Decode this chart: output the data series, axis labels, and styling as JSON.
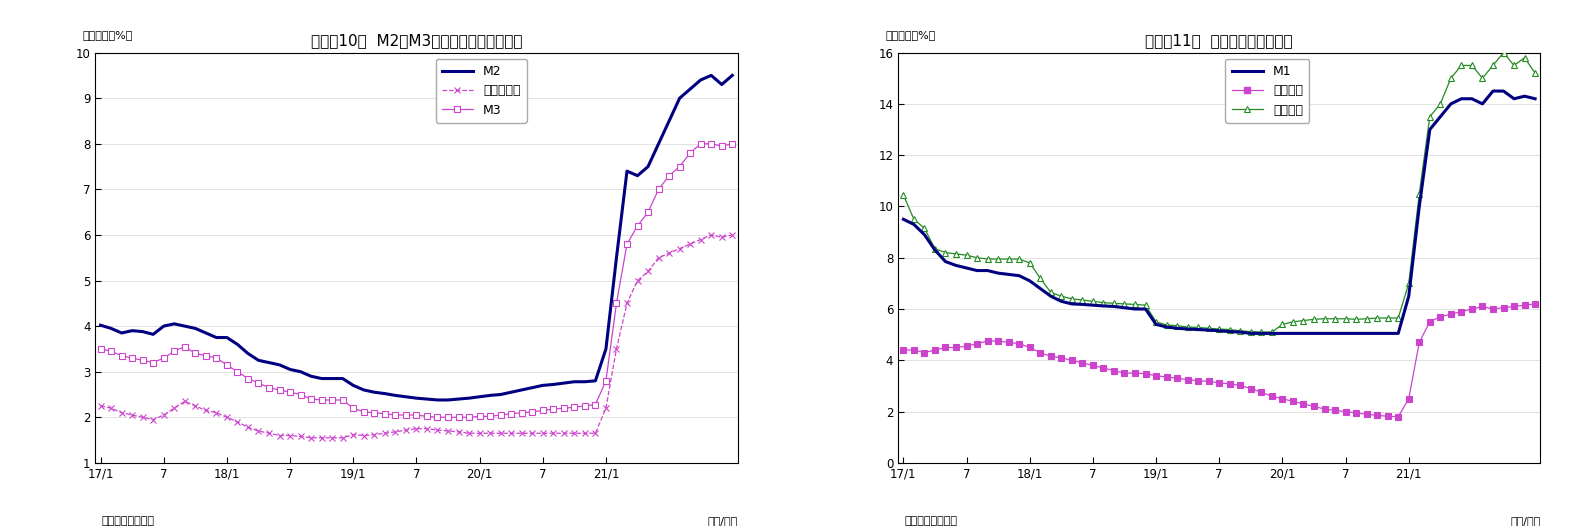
{
  "chart1": {
    "title": "（図表10）  M2、M3、広義流動性の伸び率",
    "ylabel": "（前年比、%）",
    "xlabel_right": "（年/月）",
    "source": "（資料）日本銀行",
    "ylim": [
      1,
      10
    ],
    "yticks": [
      1,
      2,
      3,
      4,
      5,
      6,
      7,
      8,
      9,
      10
    ],
    "xtick_labels": [
      "17/1",
      "7",
      "18/1",
      "7",
      "19/1",
      "7",
      "20/1",
      "7",
      "21/1"
    ],
    "xtick_pos": [
      0,
      6,
      12,
      18,
      24,
      30,
      36,
      42,
      48
    ],
    "M2": [
      4.02,
      3.95,
      3.85,
      3.9,
      3.88,
      3.82,
      4.0,
      4.05,
      4.0,
      3.95,
      3.85,
      3.75,
      3.75,
      3.6,
      3.4,
      3.25,
      3.2,
      3.15,
      3.05,
      3.0,
      2.9,
      2.85,
      2.85,
      2.85,
      2.7,
      2.6,
      2.55,
      2.52,
      2.48,
      2.45,
      2.42,
      2.4,
      2.38,
      2.38,
      2.4,
      2.42,
      2.45,
      2.48,
      2.5,
      2.55,
      2.6,
      2.65,
      2.7,
      2.72,
      2.75,
      2.78,
      2.78,
      2.8,
      3.5,
      5.5,
      7.4,
      7.3,
      7.5,
      8.0,
      8.5,
      9.0,
      9.2,
      9.4,
      9.5,
      9.3,
      9.5
    ],
    "M3": [
      3.5,
      3.45,
      3.35,
      3.3,
      3.25,
      3.2,
      3.3,
      3.45,
      3.55,
      3.4,
      3.35,
      3.3,
      3.15,
      3.0,
      2.85,
      2.75,
      2.65,
      2.6,
      2.55,
      2.5,
      2.4,
      2.38,
      2.38,
      2.38,
      2.2,
      2.12,
      2.1,
      2.08,
      2.05,
      2.05,
      2.05,
      2.02,
      2.0,
      2.0,
      2.0,
      2.0,
      2.02,
      2.02,
      2.05,
      2.08,
      2.1,
      2.12,
      2.15,
      2.18,
      2.2,
      2.22,
      2.25,
      2.28,
      2.8,
      4.5,
      5.8,
      6.2,
      6.5,
      7.0,
      7.3,
      7.5,
      7.8,
      8.0,
      8.0,
      7.95,
      8.0
    ],
    "kougi": [
      2.25,
      2.2,
      2.1,
      2.05,
      2.0,
      1.95,
      2.05,
      2.2,
      2.35,
      2.25,
      2.15,
      2.1,
      2.0,
      1.9,
      1.78,
      1.7,
      1.65,
      1.6,
      1.6,
      1.58,
      1.55,
      1.55,
      1.55,
      1.55,
      1.62,
      1.6,
      1.62,
      1.65,
      1.68,
      1.72,
      1.75,
      1.75,
      1.72,
      1.7,
      1.68,
      1.65,
      1.65,
      1.65,
      1.65,
      1.65,
      1.65,
      1.65,
      1.65,
      1.65,
      1.65,
      1.65,
      1.65,
      1.65,
      2.2,
      3.5,
      4.5,
      5.0,
      5.2,
      5.5,
      5.6,
      5.7,
      5.8,
      5.9,
      6.0,
      5.95,
      6.0
    ],
    "legend_M2": "M2",
    "legend_kougi": "広義流動性",
    "legend_M3": "M3",
    "M2_color": "#000080",
    "M3_color": "#CC44CC",
    "kougi_color": "#CC44CC",
    "n_points": 61
  },
  "chart2": {
    "title": "（図表11）  現金・預金の伸び率",
    "ylabel": "（前年比、%）",
    "xlabel_right": "（年/月）",
    "source": "（資料）日本銀行",
    "ylim": [
      0,
      16
    ],
    "yticks": [
      0,
      2,
      4,
      6,
      8,
      10,
      12,
      14,
      16
    ],
    "xtick_labels": [
      "17/1",
      "7",
      "18/1",
      "7",
      "19/1",
      "7",
      "20/1",
      "7",
      "21/1"
    ],
    "xtick_pos": [
      0,
      6,
      12,
      18,
      24,
      30,
      36,
      42,
      48
    ],
    "M1": [
      9.5,
      9.3,
      8.9,
      8.3,
      7.85,
      7.7,
      7.6,
      7.5,
      7.5,
      7.4,
      7.35,
      7.3,
      7.1,
      6.8,
      6.5,
      6.3,
      6.2,
      6.18,
      6.15,
      6.12,
      6.1,
      6.05,
      6.0,
      6.0,
      5.4,
      5.3,
      5.25,
      5.22,
      5.2,
      5.18,
      5.15,
      5.12,
      5.1,
      5.05,
      5.05,
      5.05,
      5.05,
      5.05,
      5.05,
      5.05,
      5.05,
      5.05,
      5.05,
      5.05,
      5.05,
      5.05,
      5.05,
      5.05,
      6.5,
      10.0,
      13.0,
      13.5,
      14.0,
      14.2,
      14.2,
      14.0,
      14.5,
      14.5,
      14.2,
      14.3,
      14.2
    ],
    "genkin": [
      4.4,
      4.4,
      4.3,
      4.4,
      4.5,
      4.5,
      4.55,
      4.65,
      4.75,
      4.75,
      4.7,
      4.65,
      4.5,
      4.3,
      4.15,
      4.1,
      4.0,
      3.9,
      3.8,
      3.7,
      3.6,
      3.5,
      3.5,
      3.48,
      3.4,
      3.35,
      3.3,
      3.25,
      3.2,
      3.18,
      3.12,
      3.08,
      3.02,
      2.9,
      2.75,
      2.6,
      2.5,
      2.4,
      2.3,
      2.2,
      2.1,
      2.05,
      2.0,
      1.95,
      1.9,
      1.85,
      1.82,
      1.8,
      2.5,
      4.7,
      5.5,
      5.7,
      5.8,
      5.9,
      6.0,
      6.1,
      6.0,
      6.05,
      6.1,
      6.15,
      6.2
    ],
    "yokin": [
      10.45,
      9.5,
      9.15,
      8.35,
      8.2,
      8.15,
      8.1,
      8.0,
      7.95,
      7.95,
      7.95,
      7.95,
      7.8,
      7.2,
      6.65,
      6.5,
      6.4,
      6.35,
      6.3,
      6.25,
      6.22,
      6.2,
      6.18,
      6.15,
      5.5,
      5.38,
      5.35,
      5.3,
      5.28,
      5.25,
      5.22,
      5.2,
      5.15,
      5.12,
      5.1,
      5.1,
      5.4,
      5.5,
      5.55,
      5.6,
      5.62,
      5.62,
      5.62,
      5.6,
      5.62,
      5.65,
      5.65,
      5.65,
      7.0,
      10.5,
      13.5,
      14.0,
      15.0,
      15.5,
      15.5,
      15.0,
      15.5,
      16.0,
      15.5,
      15.8,
      15.2
    ],
    "legend_M1": "M1",
    "legend_genkin": "現金通貨",
    "legend_yokin": "預金通貨",
    "M1_color": "#000080",
    "genkin_color": "#CC44CC",
    "yokin_color": "#228B22",
    "n_points": 61
  }
}
